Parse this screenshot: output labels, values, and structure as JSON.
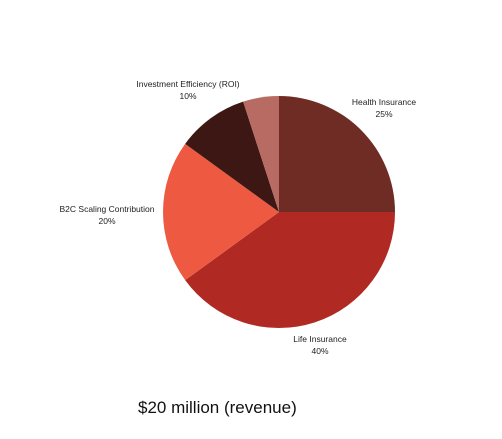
{
  "chart_data": {
    "type": "pie",
    "title": "",
    "slices": [
      {
        "name": "Health Insurance",
        "label": "Health Insurance",
        "pct_label": "25%",
        "value": 25,
        "color": "#6e2c24"
      },
      {
        "name": "Life Insurance",
        "label": "Life Insurance",
        "pct_label": "40%",
        "value": 40,
        "color": "#b02a23"
      },
      {
        "name": "B2C Scaling Contribution",
        "label": "B2C Scaling Contribution",
        "pct_label": "20%",
        "value": 20,
        "color": "#ee5a41"
      },
      {
        "name": "Investment Efficiency (ROI)",
        "label": "Investment Efficiency (ROI)",
        "pct_label": "10%",
        "value": 10,
        "color": "#3c1713"
      },
      {
        "name": "",
        "label": "",
        "pct_label": "",
        "value": 5,
        "color": "#b86b62"
      }
    ],
    "start": "12 o'clock",
    "direction": "clockwise",
    "legend": "none (direct labels)"
  },
  "caption": "$20 million (revenue)"
}
